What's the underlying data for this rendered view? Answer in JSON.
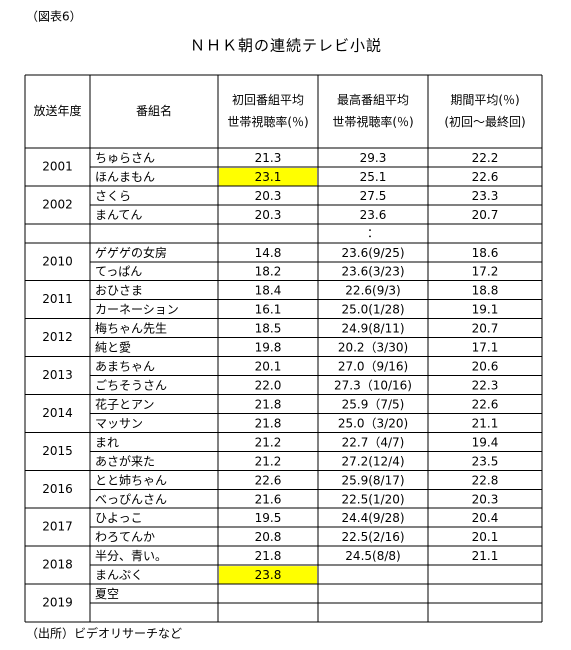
{
  "label": "（図表6）",
  "title": "ＮＨＫ朝の連続テレビ小説",
  "table": {
    "headers": [
      [
        "放送年度"
      ],
      [
        "番組名"
      ],
      [
        "初回番組平均",
        "世帯視聴率(％)"
      ],
      [
        "最高番組平均",
        "世帯視聴率(％)"
      ],
      [
        "期間平均(％)",
        "(初回～最終回)"
      ]
    ],
    "early": [
      {
        "year": "2001",
        "rows": [
          {
            "name": "ちゅらさん",
            "first": "21.3",
            "peak": "29.3",
            "avg": "22.2"
          },
          {
            "name": "ほんまもん",
            "first": "23.1",
            "peak": "25.1",
            "avg": "22.6",
            "highlight": true
          }
        ]
      },
      {
        "year": "2002",
        "rows": [
          {
            "name": "さくら",
            "first": "20.3",
            "peak": "27.5",
            "avg": "23.3"
          },
          {
            "name": "まんてん",
            "first": "20.3",
            "peak": "23.6",
            "avg": "20.7"
          }
        ]
      }
    ],
    "ellipsis": "：",
    "late": [
      {
        "year": "2010",
        "rows": [
          {
            "name": "ゲゲゲの女房",
            "first": "14.8",
            "peak": "23.6(9/25)",
            "avg": "18.6"
          },
          {
            "name": "てっぱん",
            "first": "18.2",
            "peak": "23.6(3/23)",
            "avg": "17.2"
          }
        ]
      },
      {
        "year": "2011",
        "rows": [
          {
            "name": "おひさま",
            "first": "18.4",
            "peak": "22.6(9/3)",
            "avg": "18.8"
          },
          {
            "name": "カーネーション",
            "first": "16.1",
            "peak": "25.0(1/28)",
            "avg": "19.1"
          }
        ]
      },
      {
        "year": "2012",
        "rows": [
          {
            "name": "梅ちゃん先生",
            "first": "18.5",
            "peak": "24.9(8/11)",
            "avg": "20.7"
          },
          {
            "name": "純と愛",
            "first": "19.8",
            "peak": "20.2（3/30)",
            "avg": "17.1"
          }
        ]
      },
      {
        "year": "2013",
        "rows": [
          {
            "name": "あまちゃん",
            "first": "20.1",
            "peak": "27.0（9/16)",
            "avg": "20.6"
          },
          {
            "name": "ごちそうさん",
            "first": "22.0",
            "peak": "27.3（10/16)",
            "avg": "22.3"
          }
        ]
      },
      {
        "year": "2014",
        "rows": [
          {
            "name": "花子とアン",
            "first": "21.8",
            "peak": "25.9（7/5)",
            "avg": "22.6"
          },
          {
            "name": "マッサン",
            "first": "21.8",
            "peak": "25.0（3/20)",
            "avg": "21.1"
          }
        ]
      },
      {
        "year": "2015",
        "rows": [
          {
            "name": "まれ",
            "first": "21.2",
            "peak": "22.7（4/7)",
            "avg": "19.4"
          },
          {
            "name": "あさが来た",
            "first": "21.2",
            "peak": "27.2(12/4)",
            "avg": "23.5"
          }
        ]
      },
      {
        "year": "2016",
        "rows": [
          {
            "name": "とと姉ちゃん",
            "first": "22.6",
            "peak": "25.9(8/17)",
            "avg": "22.8"
          },
          {
            "name": "べっぴんさん",
            "first": "21.6",
            "peak": "22.5(1/20)",
            "avg": "20.3"
          }
        ]
      },
      {
        "year": "2017",
        "rows": [
          {
            "name": "ひよっこ",
            "first": "19.5",
            "peak": "24.4(9/28)",
            "avg": "20.4"
          },
          {
            "name": "わろてんか",
            "first": "20.8",
            "peak": "22.5(2/16)",
            "avg": "20.1"
          }
        ]
      },
      {
        "year": "2018",
        "rows": [
          {
            "name": "半分、青い。",
            "first": "21.8",
            "peak": "24.5(8/8)",
            "avg": "21.1"
          },
          {
            "name": "まんぷく",
            "first": "23.8",
            "highlight": true
          }
        ]
      },
      {
        "year": "2019",
        "rows": [
          {
            "name": "夏空"
          }
        ]
      }
    ]
  },
  "source": "（出所）ビデオリサーチなど"
}
